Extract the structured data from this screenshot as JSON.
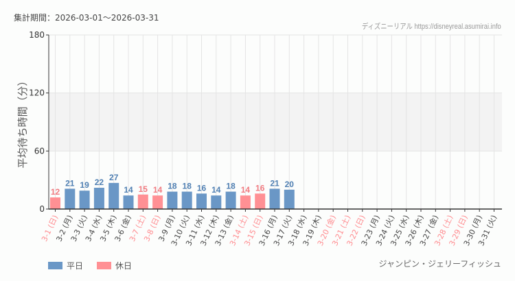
{
  "header": {
    "period": "集計期間：2026-03-01〜2026-03-31",
    "credit": "ディズニーリアル https://disneyreal.asumirai.info"
  },
  "footer": {
    "attraction": "ジャンピン・ジェリーフィッシュ"
  },
  "legend": {
    "weekday_label": "平日",
    "holiday_label": "休日"
  },
  "colors": {
    "weekday": "#6a97c6",
    "holiday": "#ff9094",
    "weekday_text": "#4f7fb2",
    "holiday_text": "#f07a80",
    "label_weekday": "#444444",
    "label_holiday": "#ff8a8e",
    "band": "#f3f3f3",
    "grid": "#e4e4e4"
  },
  "chart_data": {
    "type": "bar",
    "title": "",
    "xlabel": "",
    "ylabel": "平均待ち時間（分）",
    "ylim": [
      0,
      180
    ],
    "yticks": [
      0,
      60,
      120,
      180
    ],
    "grid": true,
    "legend_position": "bottom-left",
    "categories": [
      "3-1 (日)",
      "3-2 (月)",
      "3-3 (火)",
      "3-4 (水)",
      "3-5 (木)",
      "3-6 (金)",
      "3-7 (土)",
      "3-8 (日)",
      "3-9 (月)",
      "3-10 (火)",
      "3-11 (水)",
      "3-12 (木)",
      "3-13 (金)",
      "3-14 (土)",
      "3-15 (日)",
      "3-16 (月)",
      "3-17 (火)",
      "3-18 (水)",
      "3-19 (木)",
      "3-20 (金)",
      "3-21 (土)",
      "3-22 (日)",
      "3-23 (月)",
      "3-24 (火)",
      "3-25 (水)",
      "3-26 (木)",
      "3-27 (金)",
      "3-28 (土)",
      "3-29 (日)",
      "3-30 (月)",
      "3-31 (火)"
    ],
    "day_type": [
      "holiday",
      "weekday",
      "weekday",
      "weekday",
      "weekday",
      "weekday",
      "holiday",
      "holiday",
      "weekday",
      "weekday",
      "weekday",
      "weekday",
      "weekday",
      "holiday",
      "holiday",
      "weekday",
      "weekday",
      "weekday",
      "weekday",
      "holiday",
      "holiday",
      "holiday",
      "weekday",
      "weekday",
      "weekday",
      "weekday",
      "weekday",
      "holiday",
      "holiday",
      "weekday",
      "weekday"
    ],
    "values": [
      12,
      21,
      19,
      22,
      27,
      14,
      15,
      14,
      18,
      18,
      16,
      14,
      18,
      14,
      16,
      21,
      20,
      null,
      null,
      null,
      null,
      null,
      null,
      null,
      null,
      null,
      null,
      null,
      null,
      null,
      null
    ],
    "series": [
      {
        "name": "平日",
        "color": "#6a97c6"
      },
      {
        "name": "休日",
        "color": "#ff9094"
      }
    ]
  }
}
